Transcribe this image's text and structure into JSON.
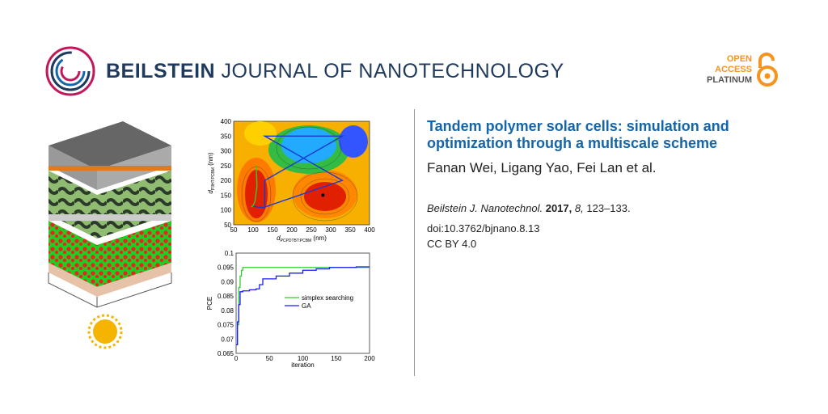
{
  "journal": {
    "bold": "BEILSTEIN",
    "rest": " JOURNAL OF NANOTECHNOLOGY"
  },
  "oa": {
    "line1": "OPEN",
    "line2": "ACCESS",
    "line3": "PLATINUM"
  },
  "article": {
    "title": "Tandem polymer solar cells: simulation and optimization through a multiscale scheme",
    "authors": "Fanan Wei, Ligang Yao, Fei Lan et al.",
    "journal_abbrev": "Beilstein J. Nanotechnol.",
    "year": "2017,",
    "volume": "8,",
    "pages": "123–133.",
    "doi": "doi:10.3762/bjnano.8.13",
    "license": "CC BY 4.0"
  },
  "chart_data": [
    {
      "type": "heatmap",
      "xlabel": "d",
      "xlabel_sub": "PCPDTBT:PCBM",
      "xlabel_unit": " (nm)",
      "ylabel": "d",
      "ylabel_sub": "P3HT:PCBM",
      "ylabel_unit": " (nm)",
      "xlim": [
        50,
        400
      ],
      "ylim": [
        50,
        400
      ],
      "xticks": [
        "50",
        "100",
        "150",
        "200",
        "250",
        "300",
        "350",
        "400"
      ],
      "yticks": [
        "50",
        "100",
        "150",
        "200",
        "250",
        "300",
        "350",
        "400"
      ],
      "path_blue": [
        [
          100,
          115
        ],
        [
          110,
          110
        ],
        [
          130,
          108
        ],
        [
          130,
          200
        ],
        [
          330,
          350
        ],
        [
          130,
          350
        ],
        [
          330,
          200
        ],
        [
          130,
          110
        ]
      ],
      "path_green": [
        [
          95,
          110
        ],
        [
          100,
          115
        ],
        [
          105,
          130
        ],
        [
          110,
          180
        ],
        [
          108,
          250
        ]
      ],
      "optimum": [
        280,
        150
      ]
    },
    {
      "type": "line",
      "xlabel": "iteration",
      "ylabel": "PCE",
      "xlim": [
        0,
        200
      ],
      "ylim": [
        0.065,
        0.1
      ],
      "xticks": [
        "0",
        "50",
        "100",
        "150",
        "200"
      ],
      "yticks": [
        "0.065",
        "0.07",
        "0.075",
        "0.08",
        "0.085",
        "0.09",
        "0.095",
        "0.1"
      ],
      "legend": "inside-right",
      "series": [
        {
          "name": "simplex searching",
          "color": "#33cc33",
          "x": [
            0,
            2,
            4,
            6,
            8,
            10,
            200
          ],
          "y": [
            0.068,
            0.075,
            0.088,
            0.092,
            0.094,
            0.095,
            0.095
          ]
        },
        {
          "name": "GA",
          "color": "#1a1aff",
          "x": [
            0,
            2,
            4,
            6,
            10,
            20,
            30,
            35,
            40,
            60,
            80,
            100,
            120,
            140,
            160,
            180,
            200
          ],
          "y": [
            0.068,
            0.076,
            0.082,
            0.0865,
            0.0868,
            0.0872,
            0.0875,
            0.089,
            0.091,
            0.092,
            0.093,
            0.094,
            0.0945,
            0.095,
            0.095,
            0.0952,
            0.0952
          ]
        }
      ]
    }
  ]
}
